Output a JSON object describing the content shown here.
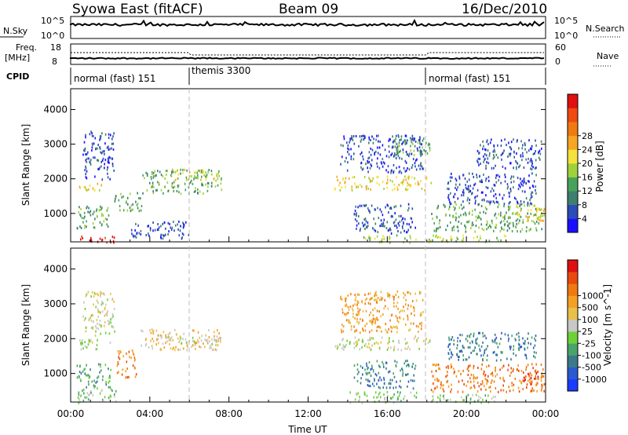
{
  "header": {
    "station": "Syowa East (fitACF)",
    "beam": "Beam 09",
    "date": "16/Dec/2010"
  },
  "top_panels": {
    "nsky_label": "N.Sky",
    "nsky_ticks": [
      "10^5",
      "10^0"
    ],
    "nsearch_label": "N.Search",
    "freq_label_1": "Freq.",
    "freq_label_2": "[MHz]",
    "freq_ticks": [
      "18",
      "8"
    ],
    "nave_label": "Nave",
    "nave_ticks": [
      "60",
      "0"
    ],
    "cpid_label": "CPID",
    "cpid_segments": [
      {
        "name": "normal (fast) 151",
        "start_hr": 0,
        "end_hr": 6
      },
      {
        "name": "themis 3300",
        "start_hr": 6,
        "end_hr": 18
      },
      {
        "name": "normal (fast) 151",
        "start_hr": 18,
        "end_hr": 24
      }
    ]
  },
  "x_axis": {
    "label": "Time UT",
    "ticks": [
      "00:00",
      "04:00",
      "08:00",
      "12:00",
      "16:00",
      "20:00",
      "00:00"
    ]
  },
  "power_colorbar": {
    "label": "Power [dB]",
    "ticks": [
      "4",
      "8",
      "12",
      "16",
      "20",
      "24",
      "28"
    ],
    "colors": [
      "#1a10ff",
      "#2a4cb8",
      "#3f7f6e",
      "#48a25a",
      "#9fd23a",
      "#f5e23a",
      "#f5a623",
      "#f07a12",
      "#ef4a10",
      "#e01010"
    ]
  },
  "velocity_colorbar": {
    "label": "Velocity [m s^-1]",
    "ticks": [
      "1000",
      "500",
      "100",
      "25",
      "-25",
      "-100",
      "-500",
      "-1000"
    ],
    "colors": [
      "#1a3cff",
      "#2a5ad0",
      "#3a7a8a",
      "#4aa36a",
      "#6ed13a",
      "#c8c8c8",
      "#e8c04a",
      "#f4a023",
      "#f07a12",
      "#ea4a10",
      "#e01010"
    ]
  },
  "chart_data": [
    {
      "type": "heatmap",
      "title": "",
      "xlabel": "Time UT",
      "ylabel": "Slant Range [km]",
      "xlim": [
        0,
        24
      ],
      "ylim": [
        180,
        4600
      ],
      "yticks": [
        "1000",
        "2000",
        "3000",
        "4000"
      ],
      "quantity": "Power [dB]",
      "scatter_regions": [
        {
          "t": [
            0.3,
            2.3
          ],
          "r": [
            180,
            380
          ],
          "level": 9
        },
        {
          "t": [
            0.3,
            2.0
          ],
          "r": [
            600,
            1300
          ],
          "level": 3
        },
        {
          "t": [
            0.4,
            1.6
          ],
          "r": [
            1650,
            1900
          ],
          "level": 5
        },
        {
          "t": [
            0.6,
            2.2
          ],
          "r": [
            2000,
            3400
          ],
          "level": 1
        },
        {
          "t": [
            2.2,
            3.6
          ],
          "r": [
            1100,
            1650
          ],
          "level": 3
        },
        {
          "t": [
            3.6,
            7.6
          ],
          "r": [
            1600,
            2300
          ],
          "level": 3
        },
        {
          "t": [
            5.0,
            7.5
          ],
          "r": [
            2000,
            2300
          ],
          "level": 5
        },
        {
          "t": [
            3.0,
            6.0
          ],
          "r": [
            300,
            800
          ],
          "level": 1
        },
        {
          "t": [
            13.3,
            18.2
          ],
          "r": [
            1700,
            2100
          ],
          "level": 5
        },
        {
          "t": [
            13.6,
            17.8
          ],
          "r": [
            2200,
            3300
          ],
          "level": 1
        },
        {
          "t": [
            14.6,
            17.5
          ],
          "r": [
            180,
            400
          ],
          "level": 4
        },
        {
          "t": [
            14.3,
            17.4
          ],
          "r": [
            450,
            1300
          ],
          "level": 1
        },
        {
          "t": [
            16.2,
            18.2
          ],
          "r": [
            2700,
            3200
          ],
          "level": 3
        },
        {
          "t": [
            18.2,
            23.8
          ],
          "r": [
            500,
            1300
          ],
          "level": 3
        },
        {
          "t": [
            19.0,
            23.5
          ],
          "r": [
            1300,
            2200
          ],
          "level": 1
        },
        {
          "t": [
            22.5,
            24.0
          ],
          "r": [
            800,
            1300
          ],
          "level": 5
        },
        {
          "t": [
            18.0,
            22.0
          ],
          "r": [
            180,
            400
          ],
          "level": 4
        },
        {
          "t": [
            20.5,
            23.8
          ],
          "r": [
            2300,
            3200
          ],
          "level": 1
        }
      ]
    },
    {
      "type": "heatmap",
      "title": "",
      "xlabel": "Time UT",
      "ylabel": "Slant Range [km]",
      "xlim": [
        0,
        24
      ],
      "ylim": [
        180,
        4600
      ],
      "yticks": [
        "1000",
        "2000",
        "3000",
        "4000"
      ],
      "quantity": "Velocity [m s^-1]",
      "scatter_regions": [
        {
          "t": [
            0.3,
            2.3
          ],
          "r": [
            180,
            600
          ],
          "level": 4
        },
        {
          "t": [
            0.3,
            2.0
          ],
          "r": [
            600,
            1300
          ],
          "level": 3
        },
        {
          "t": [
            0.4,
            2.0
          ],
          "r": [
            1700,
            2000
          ],
          "level": 5
        },
        {
          "t": [
            0.6,
            2.2
          ],
          "r": [
            2100,
            3400
          ],
          "level": 5
        },
        {
          "t": [
            2.3,
            3.3
          ],
          "r": [
            900,
            1700
          ],
          "level": 8
        },
        {
          "t": [
            3.5,
            7.6
          ],
          "r": [
            1700,
            2300
          ],
          "level": 6
        },
        {
          "t": [
            4.8,
            7.6
          ],
          "r": [
            1850,
            2100
          ],
          "level": 5
        },
        {
          "t": [
            13.3,
            18.2
          ],
          "r": [
            1700,
            2100
          ],
          "level": 5
        },
        {
          "t": [
            13.6,
            17.8
          ],
          "r": [
            2200,
            3400
          ],
          "level": 7
        },
        {
          "t": [
            14.0,
            17.5
          ],
          "r": [
            180,
            500
          ],
          "level": 4
        },
        {
          "t": [
            14.3,
            17.4
          ],
          "r": [
            600,
            1400
          ],
          "level": 2
        },
        {
          "t": [
            18.2,
            23.9
          ],
          "r": [
            500,
            1300
          ],
          "level": 8
        },
        {
          "t": [
            19.0,
            23.5
          ],
          "r": [
            1400,
            2200
          ],
          "level": 2
        },
        {
          "t": [
            22.8,
            24.0
          ],
          "r": [
            700,
            1100
          ],
          "level": 9
        },
        {
          "t": [
            18.2,
            21.5
          ],
          "r": [
            180,
            450
          ],
          "level": 4
        }
      ]
    }
  ]
}
